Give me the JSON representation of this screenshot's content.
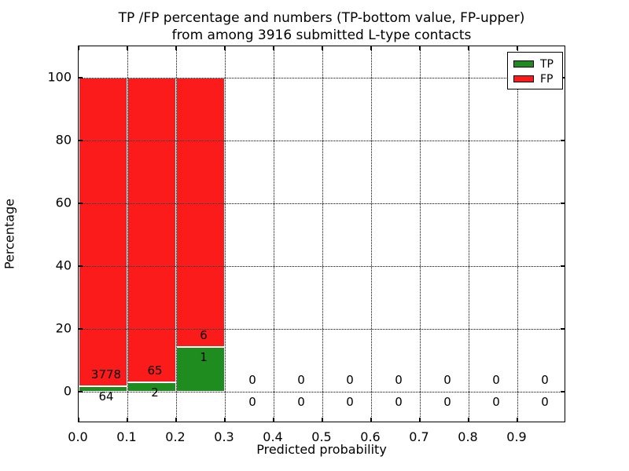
{
  "title": {
    "line1": "TP /FP percentage and numbers (TP-bottom value, FP-upper)",
    "line2": "from among 3916 submitted L-type contacts"
  },
  "axes": {
    "x": {
      "label": "Predicted probability",
      "tick_labels": [
        "0.0",
        "0.1",
        "0.2",
        "0.3",
        "0.4",
        "0.5",
        "0.6",
        "0.7",
        "0.8",
        "0.9"
      ],
      "tick_values": [
        0.0,
        0.1,
        0.2,
        0.3,
        0.4,
        0.5,
        0.6,
        0.7,
        0.8,
        0.9
      ],
      "range": [
        0.0,
        1.0
      ]
    },
    "y": {
      "label": "Percentage",
      "tick_labels": [
        "0",
        "20",
        "40",
        "60",
        "80",
        "100"
      ],
      "tick_values": [
        0,
        20,
        40,
        60,
        80,
        100
      ],
      "range": [
        -10,
        110
      ]
    }
  },
  "legend": {
    "items": [
      {
        "label": "TP",
        "color": "#1e8c1e"
      },
      {
        "label": "FP",
        "color": "#fb1b1b"
      }
    ]
  },
  "chart_data": {
    "type": "bar",
    "variant": "stacked-percentage",
    "title": "TP /FP percentage and numbers (TP-bottom value, FP-upper) from among 3916 submitted L-type contacts",
    "xlabel": "Predicted probability",
    "ylabel": "Percentage",
    "xlim": [
      0.0,
      1.0
    ],
    "ylim": [
      -10,
      110
    ],
    "grid": "dotted-both-axes",
    "legend_position": "upper right",
    "total_submitted": 3916,
    "bin_width": 0.1,
    "bin_starts": [
      0.0,
      0.1,
      0.2,
      0.3,
      0.4,
      0.5,
      0.6,
      0.7,
      0.8,
      0.9
    ],
    "series": [
      {
        "name": "TP",
        "color": "#1e8c1e",
        "counts": [
          64,
          2,
          1,
          0,
          0,
          0,
          0,
          0,
          0,
          0
        ],
        "percent": [
          1.666,
          2.985,
          14.286,
          0,
          0,
          0,
          0,
          0,
          0,
          0
        ]
      },
      {
        "name": "FP",
        "color": "#fb1b1b",
        "counts": [
          3778,
          65,
          6,
          0,
          0,
          0,
          0,
          0,
          0,
          0
        ],
        "percent": [
          98.334,
          97.015,
          85.714,
          0,
          0,
          0,
          0,
          0,
          0,
          0
        ]
      }
    ]
  }
}
